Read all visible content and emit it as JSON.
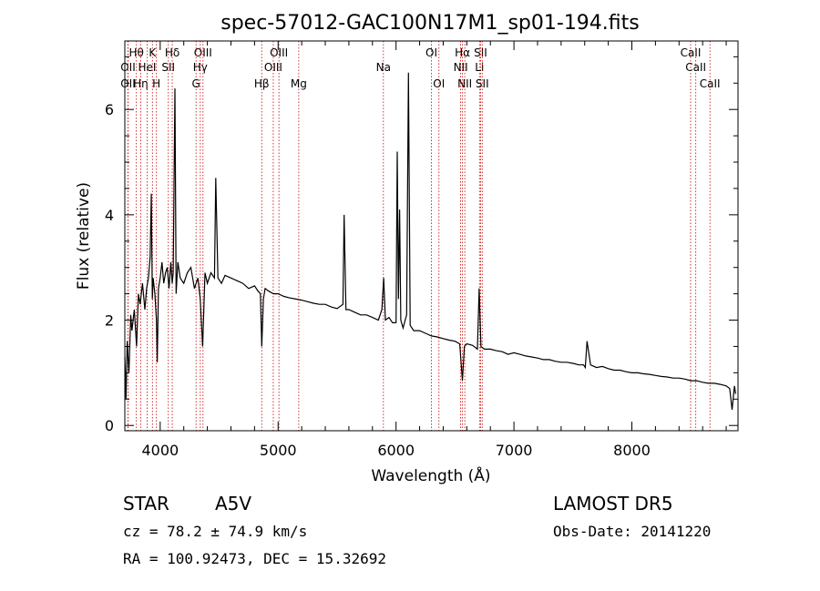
{
  "chart_data": {
    "type": "line",
    "title": "spec-57012-GAC100N17M1_sp01-194.fits",
    "xlabel": "Wavelength (Å)",
    "ylabel": "Flux (relative)",
    "xlim": [
      3700,
      8900
    ],
    "ylim": [
      -0.1,
      7.3
    ],
    "xticks": [
      4000,
      5000,
      6000,
      7000,
      8000
    ],
    "yticks": [
      0,
      2,
      4,
      6
    ],
    "series": [
      {
        "x": [
          3700,
          3710,
          3720,
          3735,
          3750,
          3760,
          3780,
          3800,
          3815,
          3830,
          3850,
          3870,
          3885,
          3900,
          3915,
          3925,
          3933,
          3940,
          3955,
          3968,
          3975,
          3985,
          4000,
          4015,
          4030,
          4045,
          4060,
          4075,
          4090,
          4102,
          4110,
          4125,
          4135,
          4150,
          4170,
          4200,
          4230,
          4260,
          4290,
          4320,
          4340,
          4360,
          4380,
          4400,
          4430,
          4460,
          4471,
          4490,
          4520,
          4550,
          4600,
          4650,
          4700,
          4750,
          4800,
          4830,
          4850,
          4861,
          4875,
          4890,
          4920,
          4960,
          5000,
          5050,
          5100,
          5150,
          5200,
          5250,
          5300,
          5350,
          5400,
          5450,
          5500,
          5550,
          5560,
          5575,
          5600,
          5650,
          5700,
          5750,
          5800,
          5850,
          5880,
          5895,
          5910,
          5940,
          5970,
          6000,
          6010,
          6020,
          6030,
          6040,
          6060,
          6090,
          6105,
          6120,
          6150,
          6200,
          6250,
          6300,
          6350,
          6400,
          6450,
          6500,
          6540,
          6563,
          6580,
          6600,
          6650,
          6690,
          6705,
          6720,
          6750,
          6800,
          6850,
          6900,
          6950,
          7000,
          7050,
          7100,
          7150,
          7200,
          7250,
          7300,
          7350,
          7400,
          7450,
          7500,
          7550,
          7590,
          7605,
          7620,
          7650,
          7700,
          7750,
          7800,
          7850,
          7900,
          7950,
          8000,
          8050,
          8100,
          8150,
          8200,
          8250,
          8300,
          8350,
          8400,
          8450,
          8500,
          8550,
          8600,
          8650,
          8700,
          8750,
          8800,
          8830,
          8850,
          8870,
          8880
        ],
        "y": [
          1.3,
          0.5,
          1.6,
          1.0,
          2.1,
          1.8,
          2.2,
          1.5,
          2.5,
          2.3,
          2.7,
          2.2,
          2.6,
          2.8,
          3.2,
          4.4,
          2.4,
          2.8,
          2.5,
          2.0,
          1.2,
          2.6,
          2.8,
          3.1,
          2.7,
          2.9,
          3.0,
          2.6,
          3.1,
          2.7,
          2.9,
          6.4,
          2.5,
          3.1,
          2.8,
          2.7,
          2.9,
          3.0,
          2.6,
          2.8,
          2.4,
          1.5,
          2.9,
          2.7,
          2.9,
          2.8,
          4.7,
          2.8,
          2.7,
          2.85,
          2.8,
          2.75,
          2.7,
          2.6,
          2.65,
          2.55,
          2.5,
          1.5,
          2.4,
          2.6,
          2.55,
          2.5,
          2.5,
          2.45,
          2.42,
          2.4,
          2.38,
          2.35,
          2.32,
          2.3,
          2.3,
          2.25,
          2.22,
          2.3,
          4.0,
          2.2,
          2.2,
          2.15,
          2.1,
          2.1,
          2.05,
          2.0,
          2.2,
          2.8,
          2.0,
          2.05,
          1.95,
          1.95,
          5.2,
          2.4,
          4.1,
          2.0,
          1.85,
          2.1,
          6.7,
          1.9,
          1.8,
          1.8,
          1.75,
          1.7,
          1.68,
          1.65,
          1.62,
          1.6,
          1.55,
          0.85,
          1.5,
          1.55,
          1.52,
          1.45,
          2.6,
          1.5,
          1.45,
          1.45,
          1.42,
          1.4,
          1.35,
          1.38,
          1.35,
          1.32,
          1.3,
          1.28,
          1.25,
          1.25,
          1.22,
          1.2,
          1.2,
          1.18,
          1.15,
          1.15,
          1.1,
          1.6,
          1.15,
          1.1,
          1.12,
          1.08,
          1.05,
          1.05,
          1.02,
          1.0,
          1.0,
          0.98,
          0.97,
          0.95,
          0.93,
          0.92,
          0.9,
          0.9,
          0.88,
          0.85,
          0.85,
          0.82,
          0.8,
          0.8,
          0.78,
          0.75,
          0.7,
          0.3,
          0.75,
          0.6
        ]
      }
    ],
    "spectral_lines": [
      {
        "label": "Hθ",
        "wavelength": 3798,
        "row": 1
      },
      {
        "label": "OII",
        "wavelength": 3727,
        "row": 2
      },
      {
        "label": "OII",
        "wavelength": 3727,
        "row": 3
      },
      {
        "label": "Hη",
        "wavelength": 3835,
        "row": 3
      },
      {
        "label": "HeI",
        "wavelength": 3889,
        "row": 2
      },
      {
        "label": "K",
        "wavelength": 3934,
        "row": 1
      },
      {
        "label": "H",
        "wavelength": 3968,
        "row": 3
      },
      {
        "label": "SII",
        "wavelength": 4069,
        "row": 2
      },
      {
        "label": "Hδ",
        "wavelength": 4102,
        "row": 1
      },
      {
        "label": "OIII",
        "wavelength": 4363,
        "row": 1
      },
      {
        "label": "Hγ",
        "wavelength": 4340,
        "row": 2
      },
      {
        "label": "G",
        "wavelength": 4304,
        "row": 3
      },
      {
        "label": "OIII",
        "wavelength": 5007,
        "row": 1
      },
      {
        "label": "OIII",
        "wavelength": 4959,
        "row": 2
      },
      {
        "label": "Hβ",
        "wavelength": 4861,
        "row": 3
      },
      {
        "label": "Mg",
        "wavelength": 5175,
        "row": 3
      },
      {
        "label": "Na",
        "wavelength": 5893,
        "row": 2
      },
      {
        "label": "OI",
        "wavelength": 6300,
        "row": 1
      },
      {
        "label": "OI",
        "wavelength": 6364,
        "row": 3
      },
      {
        "label": "Hα",
        "wavelength": 6563,
        "row": 1
      },
      {
        "label": "NII",
        "wavelength": 6548,
        "row": 2
      },
      {
        "label": "NII",
        "wavelength": 6583,
        "row": 3
      },
      {
        "label": "SII",
        "wavelength": 6717,
        "row": 1
      },
      {
        "label": "Li",
        "wavelength": 6708,
        "row": 2
      },
      {
        "label": "SII",
        "wavelength": 6731,
        "row": 3
      },
      {
        "label": "CaII",
        "wavelength": 8498,
        "row": 1
      },
      {
        "label": "CaII",
        "wavelength": 8542,
        "row": 2
      },
      {
        "label": "CaII",
        "wavelength": 8662,
        "row": 3
      }
    ],
    "colors": {
      "spectrum": "#000000",
      "lines": "#cc0000"
    }
  },
  "info": {
    "object_class": "STAR",
    "subclass": "A5V",
    "survey": "LAMOST DR5",
    "cz": "cz = 78.2 ± 74.9 km/s",
    "obs_date": "Obs-Date: 20141220",
    "coords": "RA = 100.92473, DEC =  15.32692"
  }
}
